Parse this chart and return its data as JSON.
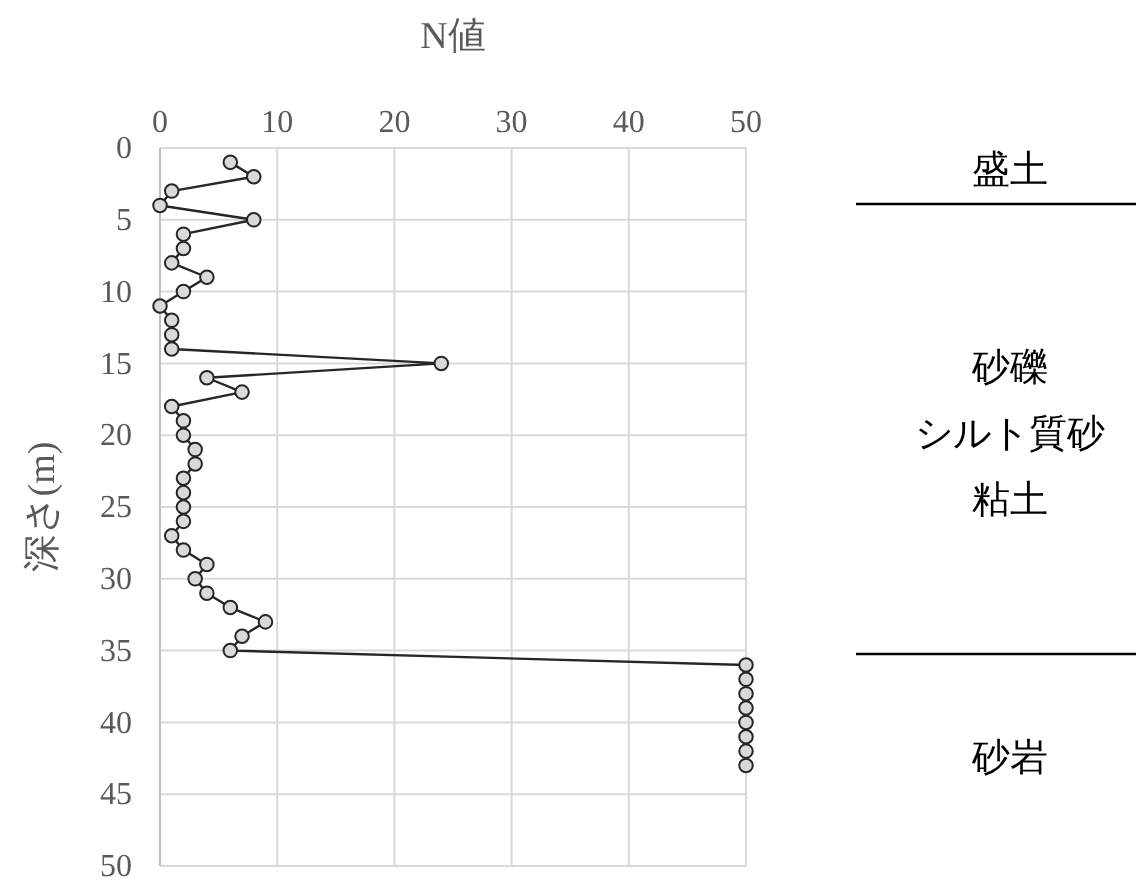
{
  "chart_data": {
    "type": "line",
    "xlabel": "N値",
    "ylabel": "深さ(m)",
    "x": [
      6,
      8,
      1,
      0,
      8,
      2,
      2,
      1,
      4,
      2,
      0,
      1,
      1,
      1,
      24,
      4,
      7,
      1,
      2,
      2,
      3,
      3,
      2,
      2,
      2,
      2,
      1,
      2,
      4,
      3,
      4,
      6,
      9,
      7,
      6,
      50,
      50,
      50,
      50,
      50,
      50,
      50,
      50
    ],
    "series": [
      {
        "color": "#262626",
        "values": [
          1,
          2,
          3,
          4,
          5,
          6,
          7,
          8,
          9,
          10,
          11,
          12,
          13,
          14,
          15,
          16,
          17,
          18,
          19,
          20,
          21,
          22,
          23,
          24,
          25,
          26,
          27,
          28,
          29,
          30,
          31,
          32,
          33,
          34,
          35,
          36,
          37,
          38,
          39,
          40,
          41,
          42,
          43
        ]
      }
    ],
    "xlim": [
      0,
      50
    ],
    "xticks": [
      0,
      10,
      20,
      30,
      40,
      50
    ],
    "ylim": [
      50,
      0
    ],
    "yticks": [
      0,
      5,
      10,
      15,
      20,
      25,
      30,
      35,
      40,
      45,
      50
    ],
    "grid": true,
    "marker": "circle",
    "line_style": "solid",
    "annotations": [
      "盛土",
      "砂礫",
      "シルト質砂",
      "粘土",
      "砂岩"
    ]
  }
}
